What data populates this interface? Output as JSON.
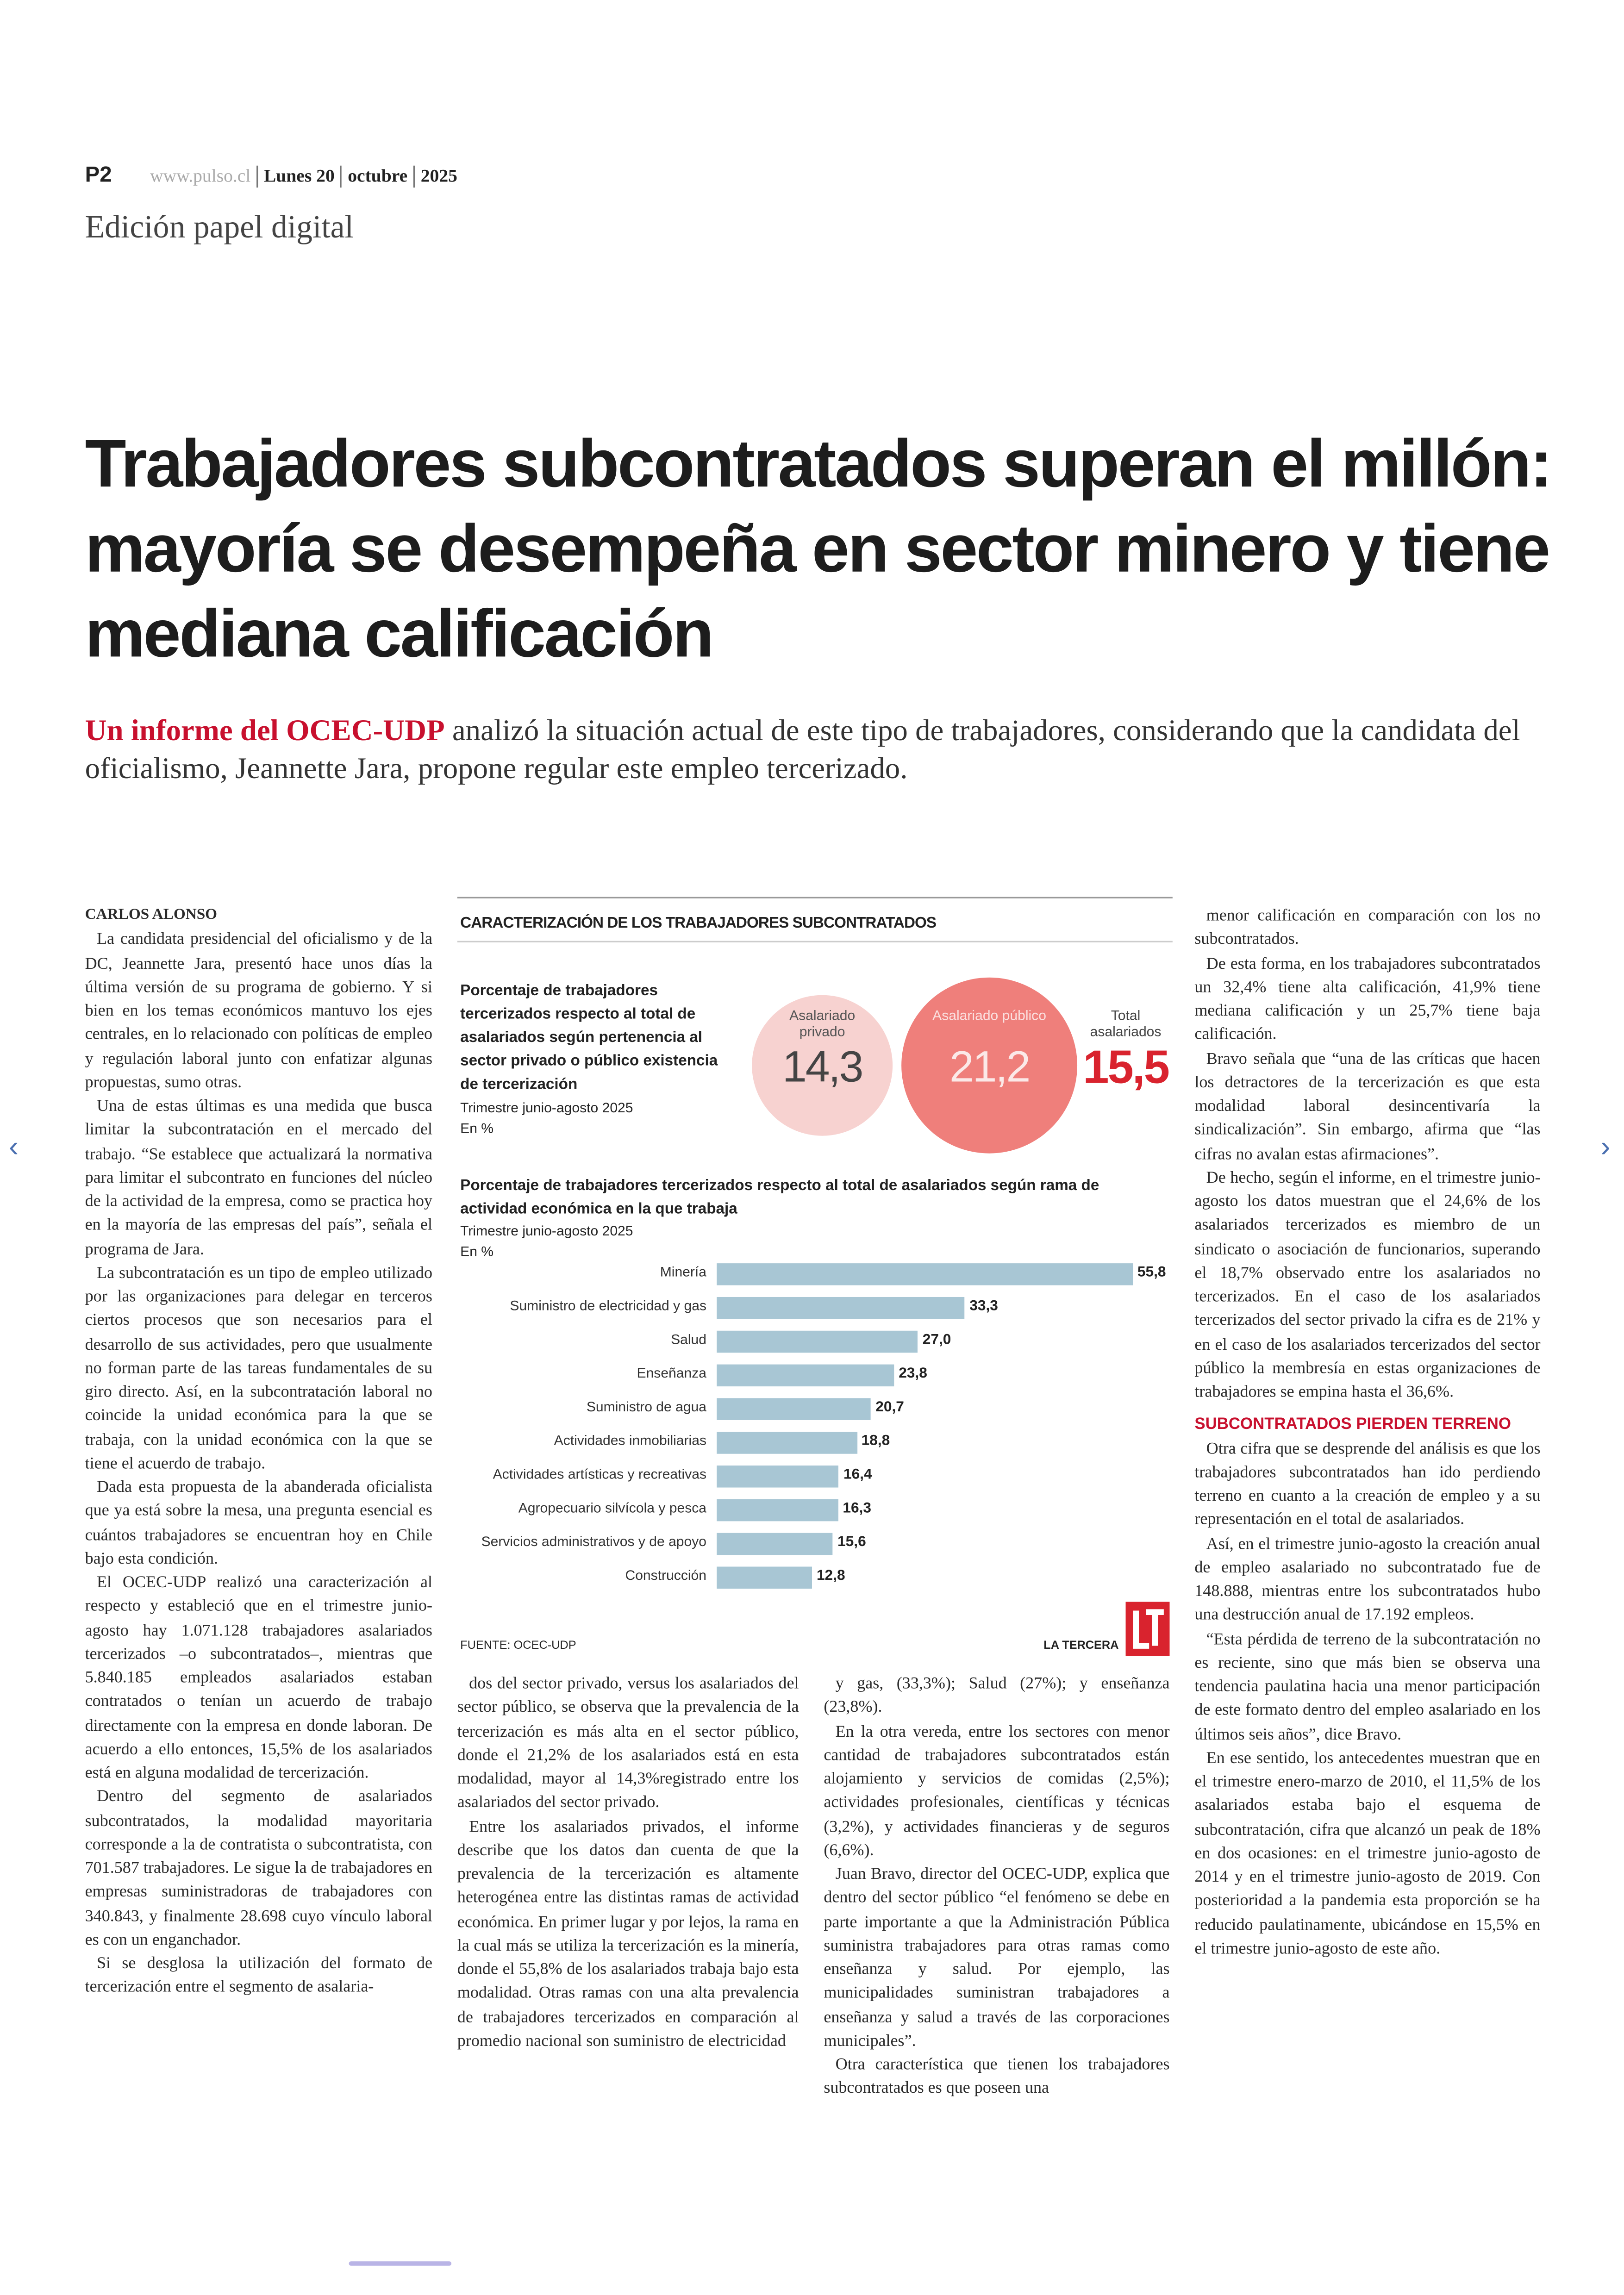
{
  "header": {
    "page": "P2",
    "site": "www.pulso.cl",
    "day": "Lunes 20",
    "month": "octubre",
    "year": "2025",
    "edition": "Edición papel digital"
  },
  "headline": "Trabajadores subcontratados superan el millón: mayoría se desempeña en sector minero y tiene mediana calificación",
  "lead": {
    "highlight": "Un informe del OCEC-UDP",
    "text": " analizó la situación actual de este tipo de trabajadores, considerando que la candidata del oficialismo, Jeannette Jara, propone regular este empleo tercerizado."
  },
  "byline": "CARLOS ALONSO",
  "columns": [
    [
      "La candidata presidencial del oficialismo y de la DC, Jeannette Jara, presentó hace unos días la última versión de su programa de gobierno. Y si bien en los temas económicos mantuvo los ejes centrales, en lo relacionado con políticas de empleo y regulación laboral junto con enfatizar algunas propuestas, sumo otras.",
      "Una de estas últimas es una medida que busca limitar la subcontratación en el mercado del trabajo. “Se establece que actualizará la normativa para limitar el subcontrato en funciones del núcleo de la actividad de la empresa, como se practica hoy en la mayoría de las empresas del país”, señala el programa de Jara.",
      "La subcontratación es un tipo de empleo utilizado por las organizaciones para delegar en terceros ciertos procesos que son necesarios para el desarrollo de sus actividades, pero que usualmente no forman parte de las tareas fundamentales de su giro directo. Así, en la subcontratación laboral no coincide la unidad económica para la que se trabaja, con la unidad económica con la que se tiene el acuerdo de trabajo.",
      "Dada esta propuesta de la abanderada oficialista que ya está sobre la mesa, una pregunta esencial es cuántos trabajadores se encuentran hoy en Chile bajo esta condición.",
      "El OCEC-UDP realizó una caracterización al respecto y estableció que en el trimestre junio-agosto hay 1.071.128 trabajadores asalariados tercerizados –o subcontratados–, mientras que 5.840.185 empleados asalariados estaban contratados o tenían un acuerdo de trabajo directamente con la empresa en donde laboran. De acuerdo a ello entonces, 15,5% de los asalariados está en alguna modalidad de tercerización.",
      "Dentro del segmento de asalariados subcontratados, la modalidad mayoritaria corresponde a la de contratista o subcontratista, con 701.587 trabajadores. Le sigue la de trabajadores en empresas suministradoras de trabajadores con 340.843, y finalmente 28.698 cuyo vínculo laboral es con un enganchador.",
      "Si se desglosa la utilización del formato de tercerización entre el segmento de asalaria-"
    ],
    [
      "dos del sector privado, versus los asalariados del sector público, se observa que la prevalencia de la tercerización es más alta en el sector público, donde el 21,2% de los asalariados está en esta modalidad, mayor al 14,3%registrado entre los asalariados del sector privado.",
      "Entre los asalariados privados, el informe describe que los datos dan cuenta de que la prevalencia de la tercerización es altamente heterogénea entre las distintas ramas de actividad económica. En primer lugar y por lejos, la rama en la cual más se utiliza la tercerización es la minería, donde el 55,8% de los asalariados trabaja bajo esta modalidad. Otras ramas con una alta prevalencia de trabajadores tercerizados en comparación al promedio nacional son suministro de electricidad"
    ],
    [
      "y gas, (33,3%); Salud (27%); y enseñanza (23,8%).",
      "En la otra vereda, entre los sectores con menor cantidad de trabajadores subcontratados están alojamiento y servicios de comidas (2,5%); actividades profesionales, científicas y técnicas (3,2%), y actividades financieras y de seguros (6,6%).",
      "Juan Bravo, director del OCEC-UDP, explica que dentro del sector público “el fenómeno se debe en parte importante a que la Administración Pública suministra trabajadores para otras ramas como enseñanza y salud. Por ejemplo, las municipalidades suministran trabajadores a enseñanza y salud a través de las corporaciones municipales”.",
      "Otra característica que tienen los trabajadores subcontratados es que poseen una"
    ],
    [
      "menor calificación en comparación con los no subcontratados.",
      "De esta forma, en los trabajadores subcontratados un 32,4% tiene alta calificación, 41,9% tiene mediana calificación y un 25,7% tiene baja calificación.",
      "Bravo señala que “una de las críticas que hacen los detractores de la tercerización es que esta modalidad laboral desincentivaría la sindicalización”. Sin embargo, afirma que “las cifras no avalan estas afirmaciones”.",
      "De hecho, según el informe, en el trimestre junio-agosto los datos muestran que el 24,6% de los asalariados tercerizados es miembro de un sindicato o asociación de funcionarios, superando el 18,7% observado entre los asalariados no tercerizados. En el caso de los asalariados tercerizados del sector privado la cifra es de 21% y en el caso de los asalariados tercerizados del sector público la membresía en estas organizaciones de trabajadores se empina hasta el 36,6%."
    ]
  ],
  "subhead": "SUBCONTRATADOS PIERDEN TERRENO",
  "column4_after_subhead": [
    "Otra cifra que se desprende del análisis es que los trabajadores subcontratados han ido perdiendo terreno en cuanto a la creación de empleo y a su representación en el total de asalariados.",
    "Así, en el trimestre junio-agosto la creación anual de empleo asalariado no subcontratado fue de 148.888, mientras entre los subcontratados hubo una destrucción anual de 17.192 empleos.",
    "“Esta pérdida de terreno de la subcontratación no es reciente, sino que más bien se observa una tendencia paulatina hacia una menor participación de este formato dentro del empleo asalariado en los últimos seis años”, dice Bravo.",
    "En ese sentido, los antecedentes muestran que en el trimestre enero-marzo de 2010, el 11,5% de los asalariados estaba bajo el esquema de subcontratación, cifra que alcanzó un peak de 18% en dos ocasiones: en el trimestre junio-agosto de 2014 y en el trimestre junio-agosto de 2019. Con posterioridad a la pandemia esta proporción se ha reducido paulatinamente, ubicándose en 15,5% en el trimestre junio-agosto de este año."
  ],
  "infographic": {
    "title": "CARACTERIZACIÓN DE LOS TRABAJADORES SUBCONTRATADOS",
    "section1": {
      "title": "Porcentaje de trabajadores tercerizados respecto al total de asalariados según pertenencia al sector privado o público existencia de tercerización",
      "period": "Trimestre junio-agosto 2025",
      "unit": "En %",
      "bubbles": [
        {
          "label": "Asalariado privado",
          "value": "14,3"
        },
        {
          "label": "Asalariado público",
          "value": "21,2"
        },
        {
          "label": "Total asalariados",
          "value": "15,5"
        }
      ]
    },
    "brand": "LA TERCERA"
  },
  "chart_data": {
    "type": "bar",
    "orientation": "horizontal",
    "title": "Porcentaje de trabajadores tercerizados respecto al total de asalariados según rama de actividad económica en la que trabaja",
    "subtitle": "Trimestre junio-agosto 2025",
    "unit": "En %",
    "categories": [
      "Minería",
      "Suministro de electricidad y gas",
      "Salud",
      "Enseñanza",
      "Suministro de agua",
      "Actividades inmobiliarias",
      "Actividades artísticas y recreativas",
      "Agropecuario silvícola y pesca",
      "Servicios administrativos y de apoyo",
      "Construcción"
    ],
    "values": [
      55.8,
      33.3,
      27.0,
      23.8,
      20.7,
      18.8,
      16.4,
      16.3,
      15.6,
      12.8
    ],
    "value_labels": [
      "55,8",
      "33,3",
      "27,0",
      "23,8",
      "20,7",
      "18,8",
      "16,4",
      "16,3",
      "15,6",
      "12,8"
    ],
    "color": "#a8c6d4",
    "source": "FUENTE: OCEC-UDP"
  }
}
